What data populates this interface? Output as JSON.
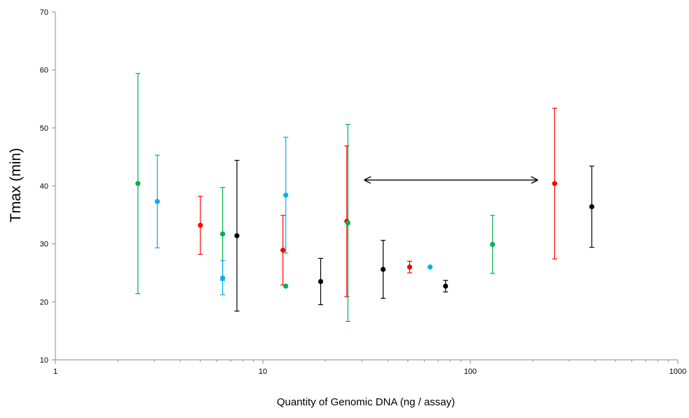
{
  "chart_data": {
    "type": "scatter",
    "title": "",
    "xlabel": "Quantity of Genomic DNA (ng / assay)",
    "ylabel": "Tmax (min)",
    "xscale": "log",
    "xlim": [
      1,
      1000
    ],
    "ylim": [
      10,
      70
    ],
    "xticks": [
      1,
      10,
      100,
      1000
    ],
    "xtick_labels": [
      "1",
      "10",
      "100",
      "1000"
    ],
    "yticks": [
      10,
      20,
      30,
      40,
      50,
      60,
      70
    ],
    "ytick_labels": [
      "10",
      "20",
      "30",
      "40",
      "50",
      "60",
      "70"
    ],
    "grid": false,
    "legend": "none",
    "colors": {
      "green": "#00b050",
      "blue": "#00b0f0",
      "red": "#ff0000",
      "black": "#000000"
    },
    "points": [
      {
        "color": "green",
        "x": 2.5,
        "y": 40.4,
        "low": 21.4,
        "high": 59.4
      },
      {
        "color": "blue",
        "x": 3.1,
        "y": 37.3,
        "low": 29.3,
        "high": 45.3
      },
      {
        "color": "red",
        "x": 5.0,
        "y": 33.2,
        "low": 28.2,
        "high": 38.2
      },
      {
        "color": "green",
        "x": 6.4,
        "y": 31.7,
        "low": 23.7,
        "high": 39.7
      },
      {
        "color": "blue",
        "x": 6.4,
        "y": 24.1,
        "low": 21.2,
        "high": 27.1
      },
      {
        "color": "black",
        "x": 7.5,
        "y": 31.4,
        "low": 18.4,
        "high": 44.4
      },
      {
        "color": "red",
        "x": 12.5,
        "y": 28.9,
        "low": 22.9,
        "high": 34.9
      },
      {
        "color": "blue",
        "x": 12.9,
        "y": 38.4,
        "low": 28.4,
        "high": 48.4
      },
      {
        "color": "green",
        "x": 12.9,
        "y": 22.7,
        "low": null,
        "high": null
      },
      {
        "color": "black",
        "x": 19.0,
        "y": 23.5,
        "low": 19.5,
        "high": 27.5
      },
      {
        "color": "red",
        "x": 25.4,
        "y": 33.9,
        "low": 20.9,
        "high": 46.9
      },
      {
        "color": "green",
        "x": 25.7,
        "y": 33.6,
        "low": 16.6,
        "high": 50.6
      },
      {
        "color": "black",
        "x": 38.0,
        "y": 25.6,
        "low": 20.6,
        "high": 30.6
      },
      {
        "color": "red",
        "x": 51.0,
        "y": 26.0,
        "low": 25.0,
        "high": 27.0
      },
      {
        "color": "blue",
        "x": 64.0,
        "y": 26.0,
        "low": null,
        "high": null
      },
      {
        "color": "black",
        "x": 76.0,
        "y": 22.7,
        "low": 21.7,
        "high": 23.7
      },
      {
        "color": "green",
        "x": 128.0,
        "y": 29.9,
        "low": 24.9,
        "high": 34.9
      },
      {
        "color": "red",
        "x": 255.0,
        "y": 40.4,
        "low": 27.4,
        "high": 53.4
      },
      {
        "color": "black",
        "x": 385.0,
        "y": 36.4,
        "low": 29.4,
        "high": 43.4
      }
    ],
    "annotations": [
      {
        "type": "double-arrow",
        "x_start": 31,
        "x_end": 210,
        "y": 41.0
      }
    ]
  }
}
